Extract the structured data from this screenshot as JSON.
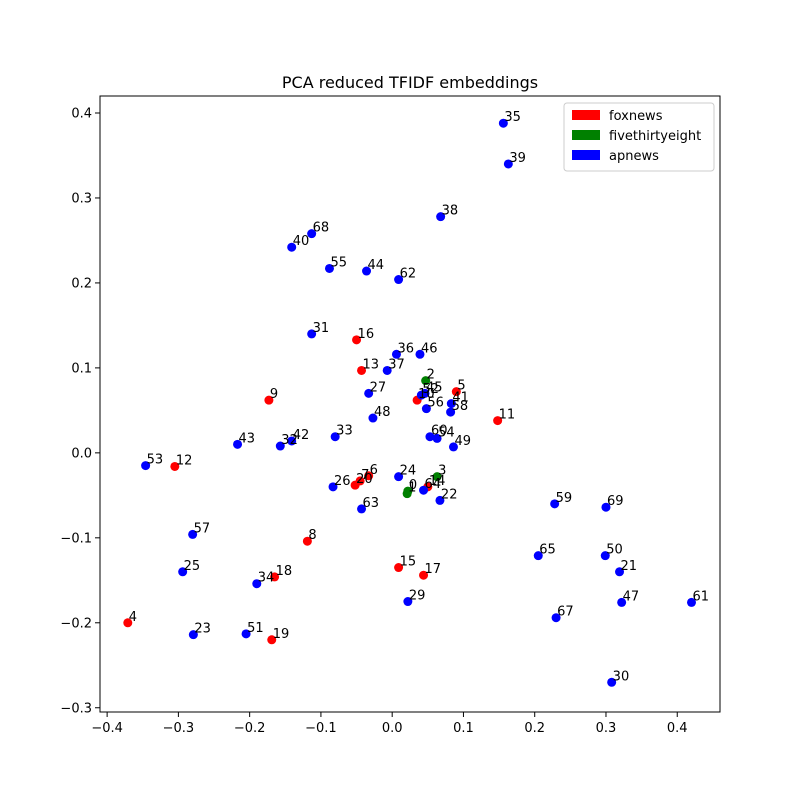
{
  "chart_data": {
    "type": "scatter",
    "title": "PCA reduced TFIDF embeddings",
    "xlabel": "",
    "ylabel": "",
    "xlim": [
      -0.41,
      0.46
    ],
    "ylim": [
      -0.305,
      0.42
    ],
    "xticks": [
      -0.4,
      -0.3,
      -0.2,
      -0.1,
      0.0,
      0.1,
      0.2,
      0.3,
      0.4
    ],
    "xtick_labels": [
      "−0.4",
      "−0.3",
      "−0.2",
      "−0.1",
      "0.0",
      "0.1",
      "0.2",
      "0.3",
      "0.4"
    ],
    "yticks": [
      -0.3,
      -0.2,
      -0.1,
      0.0,
      0.1,
      0.2,
      0.3,
      0.4
    ],
    "ytick_labels": [
      "−0.3",
      "−0.2",
      "−0.1",
      "0.0",
      "0.1",
      "0.2",
      "0.3",
      "0.4"
    ],
    "grid": false,
    "legend_position": "top-right",
    "series": [
      {
        "name": "foxnews",
        "color": "#ff0000",
        "points": [
          {
            "label": "4",
            "x": -0.371,
            "y": -0.2
          },
          {
            "label": "12",
            "x": -0.305,
            "y": -0.016
          },
          {
            "label": "9",
            "x": -0.173,
            "y": 0.062
          },
          {
            "label": "18",
            "x": -0.165,
            "y": -0.146
          },
          {
            "label": "19",
            "x": -0.169,
            "y": -0.22
          },
          {
            "label": "8",
            "x": -0.119,
            "y": -0.104
          },
          {
            "label": "16",
            "x": -0.05,
            "y": 0.133
          },
          {
            "label": "13",
            "x": -0.043,
            "y": 0.097
          },
          {
            "label": "7",
            "x": -0.045,
            "y": -0.033
          },
          {
            "label": "20",
            "x": -0.052,
            "y": -0.038
          },
          {
            "label": "6",
            "x": -0.033,
            "y": -0.027
          },
          {
            "label": "15",
            "x": 0.009,
            "y": -0.135
          },
          {
            "label": "17",
            "x": 0.044,
            "y": -0.144
          },
          {
            "label": "10",
            "x": 0.035,
            "y": 0.062
          },
          {
            "label": "14",
            "x": 0.05,
            "y": -0.04
          },
          {
            "label": "5",
            "x": 0.09,
            "y": 0.072
          },
          {
            "label": "11",
            "x": 0.148,
            "y": 0.038
          }
        ]
      },
      {
        "name": "fivethirtyeight",
        "color": "#008000",
        "points": [
          {
            "label": "2",
            "x": 0.047,
            "y": 0.085
          },
          {
            "label": "3",
            "x": 0.063,
            "y": -0.028
          },
          {
            "label": "0",
            "x": 0.022,
            "y": -0.045
          },
          {
            "label": "1",
            "x": 0.021,
            "y": -0.048
          }
        ]
      },
      {
        "name": "apnews",
        "color": "#0000ff",
        "points": [
          {
            "label": "53",
            "x": -0.346,
            "y": -0.015
          },
          {
            "label": "25",
            "x": -0.294,
            "y": -0.14
          },
          {
            "label": "57",
            "x": -0.28,
            "y": -0.096
          },
          {
            "label": "23",
            "x": -0.279,
            "y": -0.214
          },
          {
            "label": "43",
            "x": -0.217,
            "y": 0.01
          },
          {
            "label": "51",
            "x": -0.205,
            "y": -0.213
          },
          {
            "label": "34",
            "x": -0.19,
            "y": -0.154
          },
          {
            "label": "32",
            "x": -0.157,
            "y": 0.008
          },
          {
            "label": "42",
            "x": -0.141,
            "y": 0.014
          },
          {
            "label": "40",
            "x": -0.141,
            "y": 0.242
          },
          {
            "label": "68",
            "x": -0.113,
            "y": 0.258
          },
          {
            "label": "31",
            "x": -0.113,
            "y": 0.14
          },
          {
            "label": "55",
            "x": -0.088,
            "y": 0.217
          },
          {
            "label": "33",
            "x": -0.08,
            "y": 0.019
          },
          {
            "label": "26",
            "x": -0.083,
            "y": -0.04
          },
          {
            "label": "63",
            "x": -0.043,
            "y": -0.066
          },
          {
            "label": "44",
            "x": -0.036,
            "y": 0.214
          },
          {
            "label": "27",
            "x": -0.033,
            "y": 0.07
          },
          {
            "label": "48",
            "x": -0.027,
            "y": 0.041
          },
          {
            "label": "37",
            "x": -0.007,
            "y": 0.097
          },
          {
            "label": "36",
            "x": 0.006,
            "y": 0.116
          },
          {
            "label": "62",
            "x": 0.009,
            "y": 0.204
          },
          {
            "label": "24",
            "x": 0.009,
            "y": -0.028
          },
          {
            "label": "29",
            "x": 0.022,
            "y": -0.175
          },
          {
            "label": "46",
            "x": 0.039,
            "y": 0.116
          },
          {
            "label": "52",
            "x": 0.041,
            "y": 0.068
          },
          {
            "label": "45",
            "x": 0.046,
            "y": 0.07
          },
          {
            "label": "56",
            "x": 0.048,
            "y": 0.052
          },
          {
            "label": "64",
            "x": 0.044,
            "y": -0.044
          },
          {
            "label": "60",
            "x": 0.053,
            "y": 0.019
          },
          {
            "label": "54",
            "x": 0.063,
            "y": 0.017
          },
          {
            "label": "38",
            "x": 0.068,
            "y": 0.278
          },
          {
            "label": "22",
            "x": 0.067,
            "y": -0.056
          },
          {
            "label": "41",
            "x": 0.083,
            "y": 0.058
          },
          {
            "label": "58",
            "x": 0.082,
            "y": 0.048
          },
          {
            "label": "49",
            "x": 0.086,
            "y": 0.007
          },
          {
            "label": "35",
            "x": 0.156,
            "y": 0.388
          },
          {
            "label": "39",
            "x": 0.163,
            "y": 0.34
          },
          {
            "label": "65",
            "x": 0.205,
            "y": -0.121
          },
          {
            "label": "59",
            "x": 0.228,
            "y": -0.06
          },
          {
            "label": "67",
            "x": 0.23,
            "y": -0.194
          },
          {
            "label": "50",
            "x": 0.299,
            "y": -0.121
          },
          {
            "label": "69",
            "x": 0.3,
            "y": -0.064
          },
          {
            "label": "30",
            "x": 0.308,
            "y": -0.27
          },
          {
            "label": "21",
            "x": 0.319,
            "y": -0.14
          },
          {
            "label": "47",
            "x": 0.322,
            "y": -0.176
          },
          {
            "label": "61",
            "x": 0.42,
            "y": -0.176
          }
        ]
      }
    ]
  }
}
